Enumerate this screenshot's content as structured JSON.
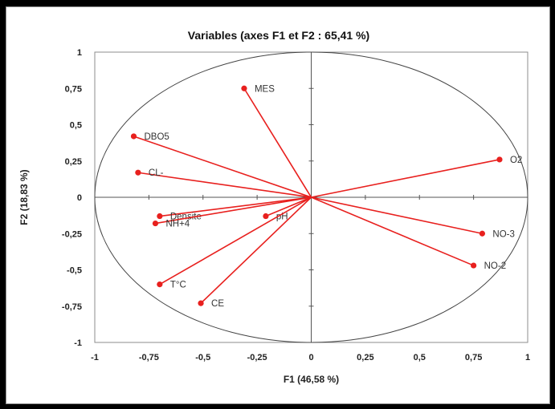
{
  "chart_data": {
    "type": "scatter",
    "subtype": "correlation-circle",
    "title": "Variables (axes F1 et F2 : 65,41 %)",
    "xlabel": "F1 (46,58 %)",
    "ylabel": "F2 (18,83 %)",
    "xlim": [
      -1,
      1
    ],
    "ylim": [
      -1,
      1
    ],
    "x_ticks": [
      -1,
      -0.75,
      -0.5,
      -0.25,
      0,
      0.25,
      0.5,
      0.75,
      1
    ],
    "y_ticks": [
      -1,
      -0.75,
      -0.5,
      -0.25,
      0,
      0.25,
      0.5,
      0.75,
      1
    ],
    "x_tick_labels": [
      "-1",
      "-0,75",
      "-0,5",
      "-0,25",
      "0",
      "0,25",
      "0,5",
      "0,75",
      "1"
    ],
    "y_tick_labels": [
      "-1",
      "-0,75",
      "-0,5",
      "-0,25",
      "0",
      "0,25",
      "0,5",
      "0,75",
      "1"
    ],
    "grid": false,
    "unit_circle": true,
    "vectors_from_origin": true,
    "color": "#e8201e",
    "points": [
      {
        "label": "MES",
        "x": -0.31,
        "y": 0.75
      },
      {
        "label": "DBO5",
        "x": -0.82,
        "y": 0.42
      },
      {
        "label": "CL-",
        "x": -0.8,
        "y": 0.17
      },
      {
        "label": "O2",
        "x": 0.87,
        "y": 0.26
      },
      {
        "label": "Densite",
        "x": -0.7,
        "y": -0.13
      },
      {
        "label": "NH+4",
        "x": -0.72,
        "y": -0.18
      },
      {
        "label": "pH",
        "x": -0.21,
        "y": -0.13
      },
      {
        "label": "NO-3",
        "x": 0.79,
        "y": -0.25
      },
      {
        "label": "NO-2",
        "x": 0.75,
        "y": -0.47
      },
      {
        "label": "T°C",
        "x": -0.7,
        "y": -0.6
      },
      {
        "label": "CE",
        "x": -0.51,
        "y": -0.73
      }
    ]
  }
}
